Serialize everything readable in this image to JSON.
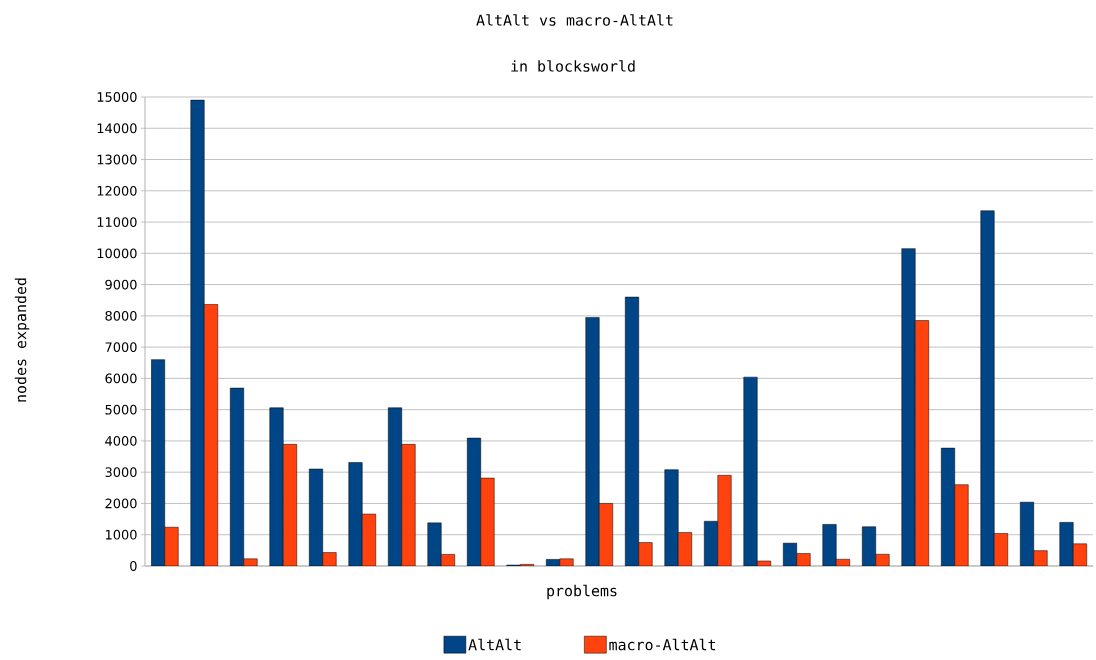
{
  "chart_data": {
    "type": "bar",
    "title": "AltAlt vs macro-AltAlt",
    "subtitle": "in blocksworld",
    "xlabel": "problems",
    "ylabel": "nodes expanded",
    "categories": [
      null,
      null,
      null,
      null,
      null,
      null,
      null,
      null,
      null,
      null,
      null,
      null,
      null,
      null,
      null,
      null,
      null,
      null,
      null,
      null,
      null,
      null,
      null,
      null
    ],
    "series": [
      {
        "name": "AltAlt",
        "color": "#004586",
        "values": [
          6600,
          14900,
          5690,
          5060,
          3100,
          3310,
          5060,
          1380,
          4090,
          30,
          210,
          7950,
          8600,
          3080,
          1430,
          6040,
          730,
          1330,
          1255,
          10150,
          3770,
          11360,
          2040,
          1395
        ]
      },
      {
        "name": "macro-AltAlt",
        "color": "#ff420e",
        "values": [
          1240,
          8370,
          230,
          3890,
          430,
          1660,
          3890,
          370,
          2810,
          50,
          230,
          2000,
          750,
          1070,
          2900,
          160,
          400,
          215,
          375,
          7850,
          2600,
          1040,
          490,
          710
        ]
      }
    ],
    "ylim": [
      0,
      15000
    ],
    "yticks": [
      0,
      1000,
      2000,
      3000,
      4000,
      5000,
      6000,
      7000,
      8000,
      9000,
      10000,
      11000,
      12000,
      13000,
      14000,
      15000
    ],
    "grid": "y",
    "legend": "bottom"
  }
}
